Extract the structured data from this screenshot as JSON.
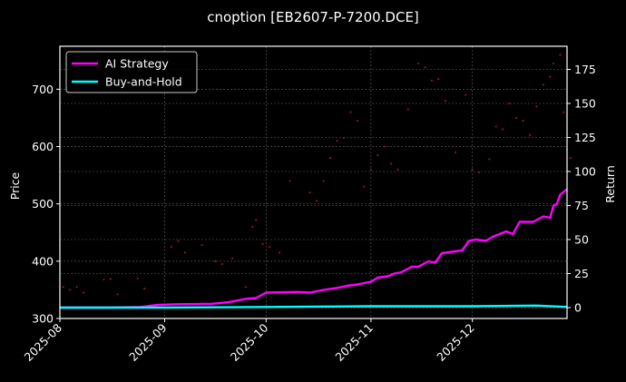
{
  "chart_data": {
    "type": "line",
    "title": "cnoption [EB2607-P-7200.DCE]",
    "background": "#000000",
    "xlabel": "",
    "x_ticks": [
      "2025-08",
      "2025-09",
      "2025-10",
      "2025-11",
      "2025-12"
    ],
    "x_range": [
      "2025-08-01",
      "2025-12-29"
    ],
    "left_axis": {
      "label": "Price",
      "ticks": [
        300,
        400,
        500,
        600,
        700
      ],
      "ylim": [
        300,
        775
      ]
    },
    "right_axis": {
      "label": "Return",
      "ticks": [
        0,
        25,
        50,
        75,
        100,
        125,
        150,
        175
      ],
      "ylim": [
        -8,
        192
      ]
    },
    "grid": true,
    "legend": {
      "position": "upper left",
      "entries": [
        {
          "name": "AI Strategy",
          "color": "#ff00ff"
        },
        {
          "name": "Buy-and-Hold",
          "color": "#00ffff"
        }
      ]
    },
    "series": [
      {
        "name": "AI Strategy",
        "axis": "right",
        "color": "#ff00ff",
        "points": [
          [
            "2025-08-01",
            0
          ],
          [
            "2025-08-15",
            0
          ],
          [
            "2025-08-25",
            0.5
          ],
          [
            "2025-08-30",
            2
          ],
          [
            "2025-09-05",
            2.5
          ],
          [
            "2025-09-15",
            2.8
          ],
          [
            "2025-09-20",
            4
          ],
          [
            "2025-09-25",
            6.5
          ],
          [
            "2025-09-28",
            7
          ],
          [
            "2025-10-01",
            11
          ],
          [
            "2025-10-10",
            11.5
          ],
          [
            "2025-10-14",
            11
          ],
          [
            "2025-10-18",
            13
          ],
          [
            "2025-10-22",
            14.5
          ],
          [
            "2025-10-25",
            16
          ],
          [
            "2025-10-28",
            17
          ],
          [
            "2025-11-01",
            19
          ],
          [
            "2025-11-03",
            22
          ],
          [
            "2025-11-06",
            23
          ],
          [
            "2025-11-08",
            25
          ],
          [
            "2025-11-10",
            26
          ],
          [
            "2025-11-13",
            30
          ],
          [
            "2025-11-15",
            30
          ],
          [
            "2025-11-18",
            34
          ],
          [
            "2025-11-20",
            33
          ],
          [
            "2025-11-22",
            40
          ],
          [
            "2025-11-25",
            41
          ],
          [
            "2025-11-28",
            42
          ],
          [
            "2025-11-30",
            49
          ],
          [
            "2025-12-02",
            50
          ],
          [
            "2025-12-05",
            49
          ],
          [
            "2025-12-07",
            52
          ],
          [
            "2025-12-09",
            54
          ],
          [
            "2025-12-11",
            56
          ],
          [
            "2025-12-13",
            54
          ],
          [
            "2025-12-15",
            63
          ],
          [
            "2025-12-19",
            63
          ],
          [
            "2025-12-22",
            67
          ],
          [
            "2025-12-24",
            66
          ],
          [
            "2025-12-25",
            75
          ],
          [
            "2025-12-26",
            76
          ],
          [
            "2025-12-27",
            83
          ],
          [
            "2025-12-29",
            87
          ]
        ]
      },
      {
        "name": "Buy-and-Hold",
        "axis": "right",
        "color": "#00ffff",
        "points": [
          [
            "2025-08-01",
            0
          ],
          [
            "2025-09-01",
            0
          ],
          [
            "2025-10-01",
            0.5
          ],
          [
            "2025-11-01",
            1
          ],
          [
            "2025-12-01",
            1
          ],
          [
            "2025-12-20",
            1.5
          ],
          [
            "2025-12-29",
            0.5
          ]
        ]
      }
    ],
    "price_scatter": {
      "axis": "left",
      "color": "#8b1a1a",
      "points": [
        [
          "2025-08-02",
          355
        ],
        [
          "2025-08-04",
          350
        ],
        [
          "2025-08-06",
          355
        ],
        [
          "2025-08-08",
          345
        ],
        [
          "2025-08-14",
          368
        ],
        [
          "2025-08-16",
          369
        ],
        [
          "2025-08-18",
          342
        ],
        [
          "2025-08-24",
          370
        ],
        [
          "2025-08-26",
          352
        ],
        [
          "2025-09-03",
          425
        ],
        [
          "2025-09-05",
          435
        ],
        [
          "2025-09-07",
          415
        ],
        [
          "2025-09-12",
          428
        ],
        [
          "2025-09-16",
          400
        ],
        [
          "2025-09-18",
          395
        ],
        [
          "2025-09-21",
          405
        ],
        [
          "2025-09-25",
          355
        ],
        [
          "2025-09-27",
          460
        ],
        [
          "2025-09-28",
          472
        ],
        [
          "2025-09-30",
          430
        ],
        [
          "2025-10-02",
          425
        ],
        [
          "2025-10-05",
          415
        ],
        [
          "2025-10-08",
          540
        ],
        [
          "2025-10-14",
          520
        ],
        [
          "2025-10-16",
          505
        ],
        [
          "2025-10-18",
          540
        ],
        [
          "2025-10-20",
          580
        ],
        [
          "2025-10-22",
          610
        ],
        [
          "2025-10-24",
          615
        ],
        [
          "2025-10-26",
          660
        ],
        [
          "2025-10-28",
          645
        ],
        [
          "2025-10-30",
          530
        ],
        [
          "2025-11-01",
          560
        ],
        [
          "2025-11-03",
          585
        ],
        [
          "2025-11-05",
          600
        ],
        [
          "2025-11-07",
          570
        ],
        [
          "2025-11-09",
          560
        ],
        [
          "2025-11-12",
          665
        ],
        [
          "2025-11-15",
          745
        ],
        [
          "2025-11-17",
          738
        ],
        [
          "2025-11-19",
          715
        ],
        [
          "2025-11-21",
          718
        ],
        [
          "2025-11-23",
          680
        ],
        [
          "2025-11-26",
          590
        ],
        [
          "2025-11-29",
          690
        ],
        [
          "2025-12-01",
          560
        ],
        [
          "2025-12-03",
          555
        ],
        [
          "2025-12-06",
          578
        ],
        [
          "2025-12-08",
          635
        ],
        [
          "2025-12-10",
          630
        ],
        [
          "2025-12-12",
          675
        ],
        [
          "2025-12-14",
          650
        ],
        [
          "2025-12-16",
          645
        ],
        [
          "2025-12-18",
          620
        ],
        [
          "2025-12-20",
          670
        ],
        [
          "2025-12-22",
          708
        ],
        [
          "2025-12-24",
          722
        ],
        [
          "2025-12-25",
          745
        ],
        [
          "2025-12-27",
          760
        ],
        [
          "2025-12-28",
          660
        ],
        [
          "2025-12-29",
          595
        ],
        [
          "2025-12-30",
          580
        ]
      ]
    }
  }
}
